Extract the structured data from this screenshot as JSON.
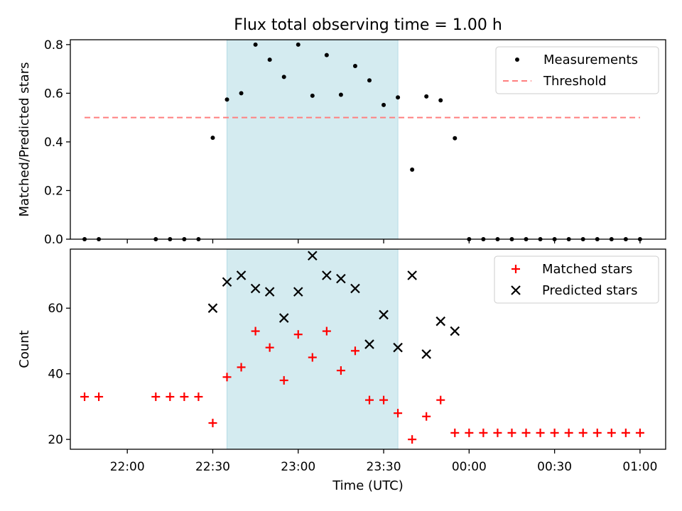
{
  "chart_data": [
    {
      "type": "scatter",
      "title": "Flux total observing time = 1.00 h",
      "xlabel": "",
      "ylabel": "Matched/Predicted stars",
      "ylim": [
        0,
        0.82
      ],
      "yticks": [
        0.0,
        0.2,
        0.4,
        0.6,
        0.8
      ],
      "shaded_interval": [
        "22:35",
        "23:35"
      ],
      "shade_color": "#d4ebf0",
      "legend_position": "top-right",
      "series": [
        {
          "name": "Measurements",
          "marker": "dot",
          "color": "#000000",
          "points": [
            [
              "21:45",
              0.0
            ],
            [
              "21:50",
              0.0
            ],
            [
              "22:10",
              0.0
            ],
            [
              "22:15",
              0.0
            ],
            [
              "22:20",
              0.0
            ],
            [
              "22:25",
              0.0
            ],
            [
              "22:30",
              0.417
            ],
            [
              "22:35",
              0.574
            ],
            [
              "22:40",
              0.6
            ],
            [
              "22:45",
              0.8
            ],
            [
              "22:50",
              0.738
            ],
            [
              "22:55",
              0.667
            ],
            [
              "23:00",
              0.8
            ],
            [
              "23:05",
              0.59
            ],
            [
              "23:10",
              0.757
            ],
            [
              "23:15",
              0.594
            ],
            [
              "23:20",
              0.712
            ],
            [
              "23:25",
              0.653
            ],
            [
              "23:30",
              0.552
            ],
            [
              "23:35",
              0.583
            ],
            [
              "23:40",
              0.286
            ],
            [
              "23:45",
              0.587
            ],
            [
              "23:50",
              0.571
            ],
            [
              "23:55",
              0.415
            ],
            [
              "00:00",
              0.0
            ],
            [
              "00:05",
              0.0
            ],
            [
              "00:10",
              0.0
            ],
            [
              "00:15",
              0.0
            ],
            [
              "00:20",
              0.0
            ],
            [
              "00:25",
              0.0
            ],
            [
              "00:30",
              0.0
            ],
            [
              "00:35",
              0.0
            ],
            [
              "00:40",
              0.0
            ],
            [
              "00:45",
              0.0
            ],
            [
              "00:50",
              0.0
            ],
            [
              "00:55",
              0.0
            ],
            [
              "01:00",
              0.0
            ]
          ]
        },
        {
          "name": "Threshold",
          "marker": "dashed-line",
          "color": "#ff7f7f",
          "points": [
            [
              "21:45",
              0.5
            ],
            [
              "01:00",
              0.5
            ]
          ]
        }
      ]
    },
    {
      "type": "scatter",
      "title": "",
      "xlabel": "Time (UTC)",
      "ylabel": "Count",
      "ylim": [
        17,
        78
      ],
      "yticks": [
        20,
        40,
        60
      ],
      "xlim": [
        "21:40",
        "01:09"
      ],
      "xticks": [
        "22:00",
        "22:30",
        "23:00",
        "23:30",
        "00:00",
        "00:30",
        "01:00"
      ],
      "shaded_interval": [
        "22:35",
        "23:35"
      ],
      "shade_color": "#d4ebf0",
      "legend_position": "top-right",
      "series": [
        {
          "name": "Matched stars",
          "marker": "plus",
          "color": "#ff0000",
          "points": [
            [
              "21:45",
              33
            ],
            [
              "21:50",
              33
            ],
            [
              "22:10",
              33
            ],
            [
              "22:15",
              33
            ],
            [
              "22:20",
              33
            ],
            [
              "22:25",
              33
            ],
            [
              "22:30",
              25
            ],
            [
              "22:35",
              39
            ],
            [
              "22:40",
              42
            ],
            [
              "22:45",
              53
            ],
            [
              "22:50",
              48
            ],
            [
              "22:55",
              38
            ],
            [
              "23:00",
              52
            ],
            [
              "23:05",
              45
            ],
            [
              "23:10",
              53
            ],
            [
              "23:15",
              41
            ],
            [
              "23:20",
              47
            ],
            [
              "23:25",
              32
            ],
            [
              "23:30",
              32
            ],
            [
              "23:35",
              28
            ],
            [
              "23:40",
              20
            ],
            [
              "23:45",
              27
            ],
            [
              "23:50",
              32
            ],
            [
              "23:55",
              22
            ],
            [
              "00:00",
              22
            ],
            [
              "00:05",
              22
            ],
            [
              "00:10",
              22
            ],
            [
              "00:15",
              22
            ],
            [
              "00:20",
              22
            ],
            [
              "00:25",
              22
            ],
            [
              "00:30",
              22
            ],
            [
              "00:35",
              22
            ],
            [
              "00:40",
              22
            ],
            [
              "00:45",
              22
            ],
            [
              "00:50",
              22
            ],
            [
              "00:55",
              22
            ],
            [
              "01:00",
              22
            ]
          ]
        },
        {
          "name": "Predicted stars",
          "marker": "x",
          "color": "#000000",
          "points": [
            [
              "22:30",
              60
            ],
            [
              "22:35",
              68
            ],
            [
              "22:40",
              70
            ],
            [
              "22:45",
              66
            ],
            [
              "22:50",
              65
            ],
            [
              "22:55",
              57
            ],
            [
              "23:00",
              65
            ],
            [
              "23:05",
              76
            ],
            [
              "23:10",
              70
            ],
            [
              "23:15",
              69
            ],
            [
              "23:20",
              66
            ],
            [
              "23:25",
              49
            ],
            [
              "23:30",
              58
            ],
            [
              "23:35",
              48
            ],
            [
              "23:40",
              70
            ],
            [
              "23:45",
              46
            ],
            [
              "23:50",
              56
            ],
            [
              "23:55",
              53
            ]
          ]
        }
      ]
    }
  ]
}
